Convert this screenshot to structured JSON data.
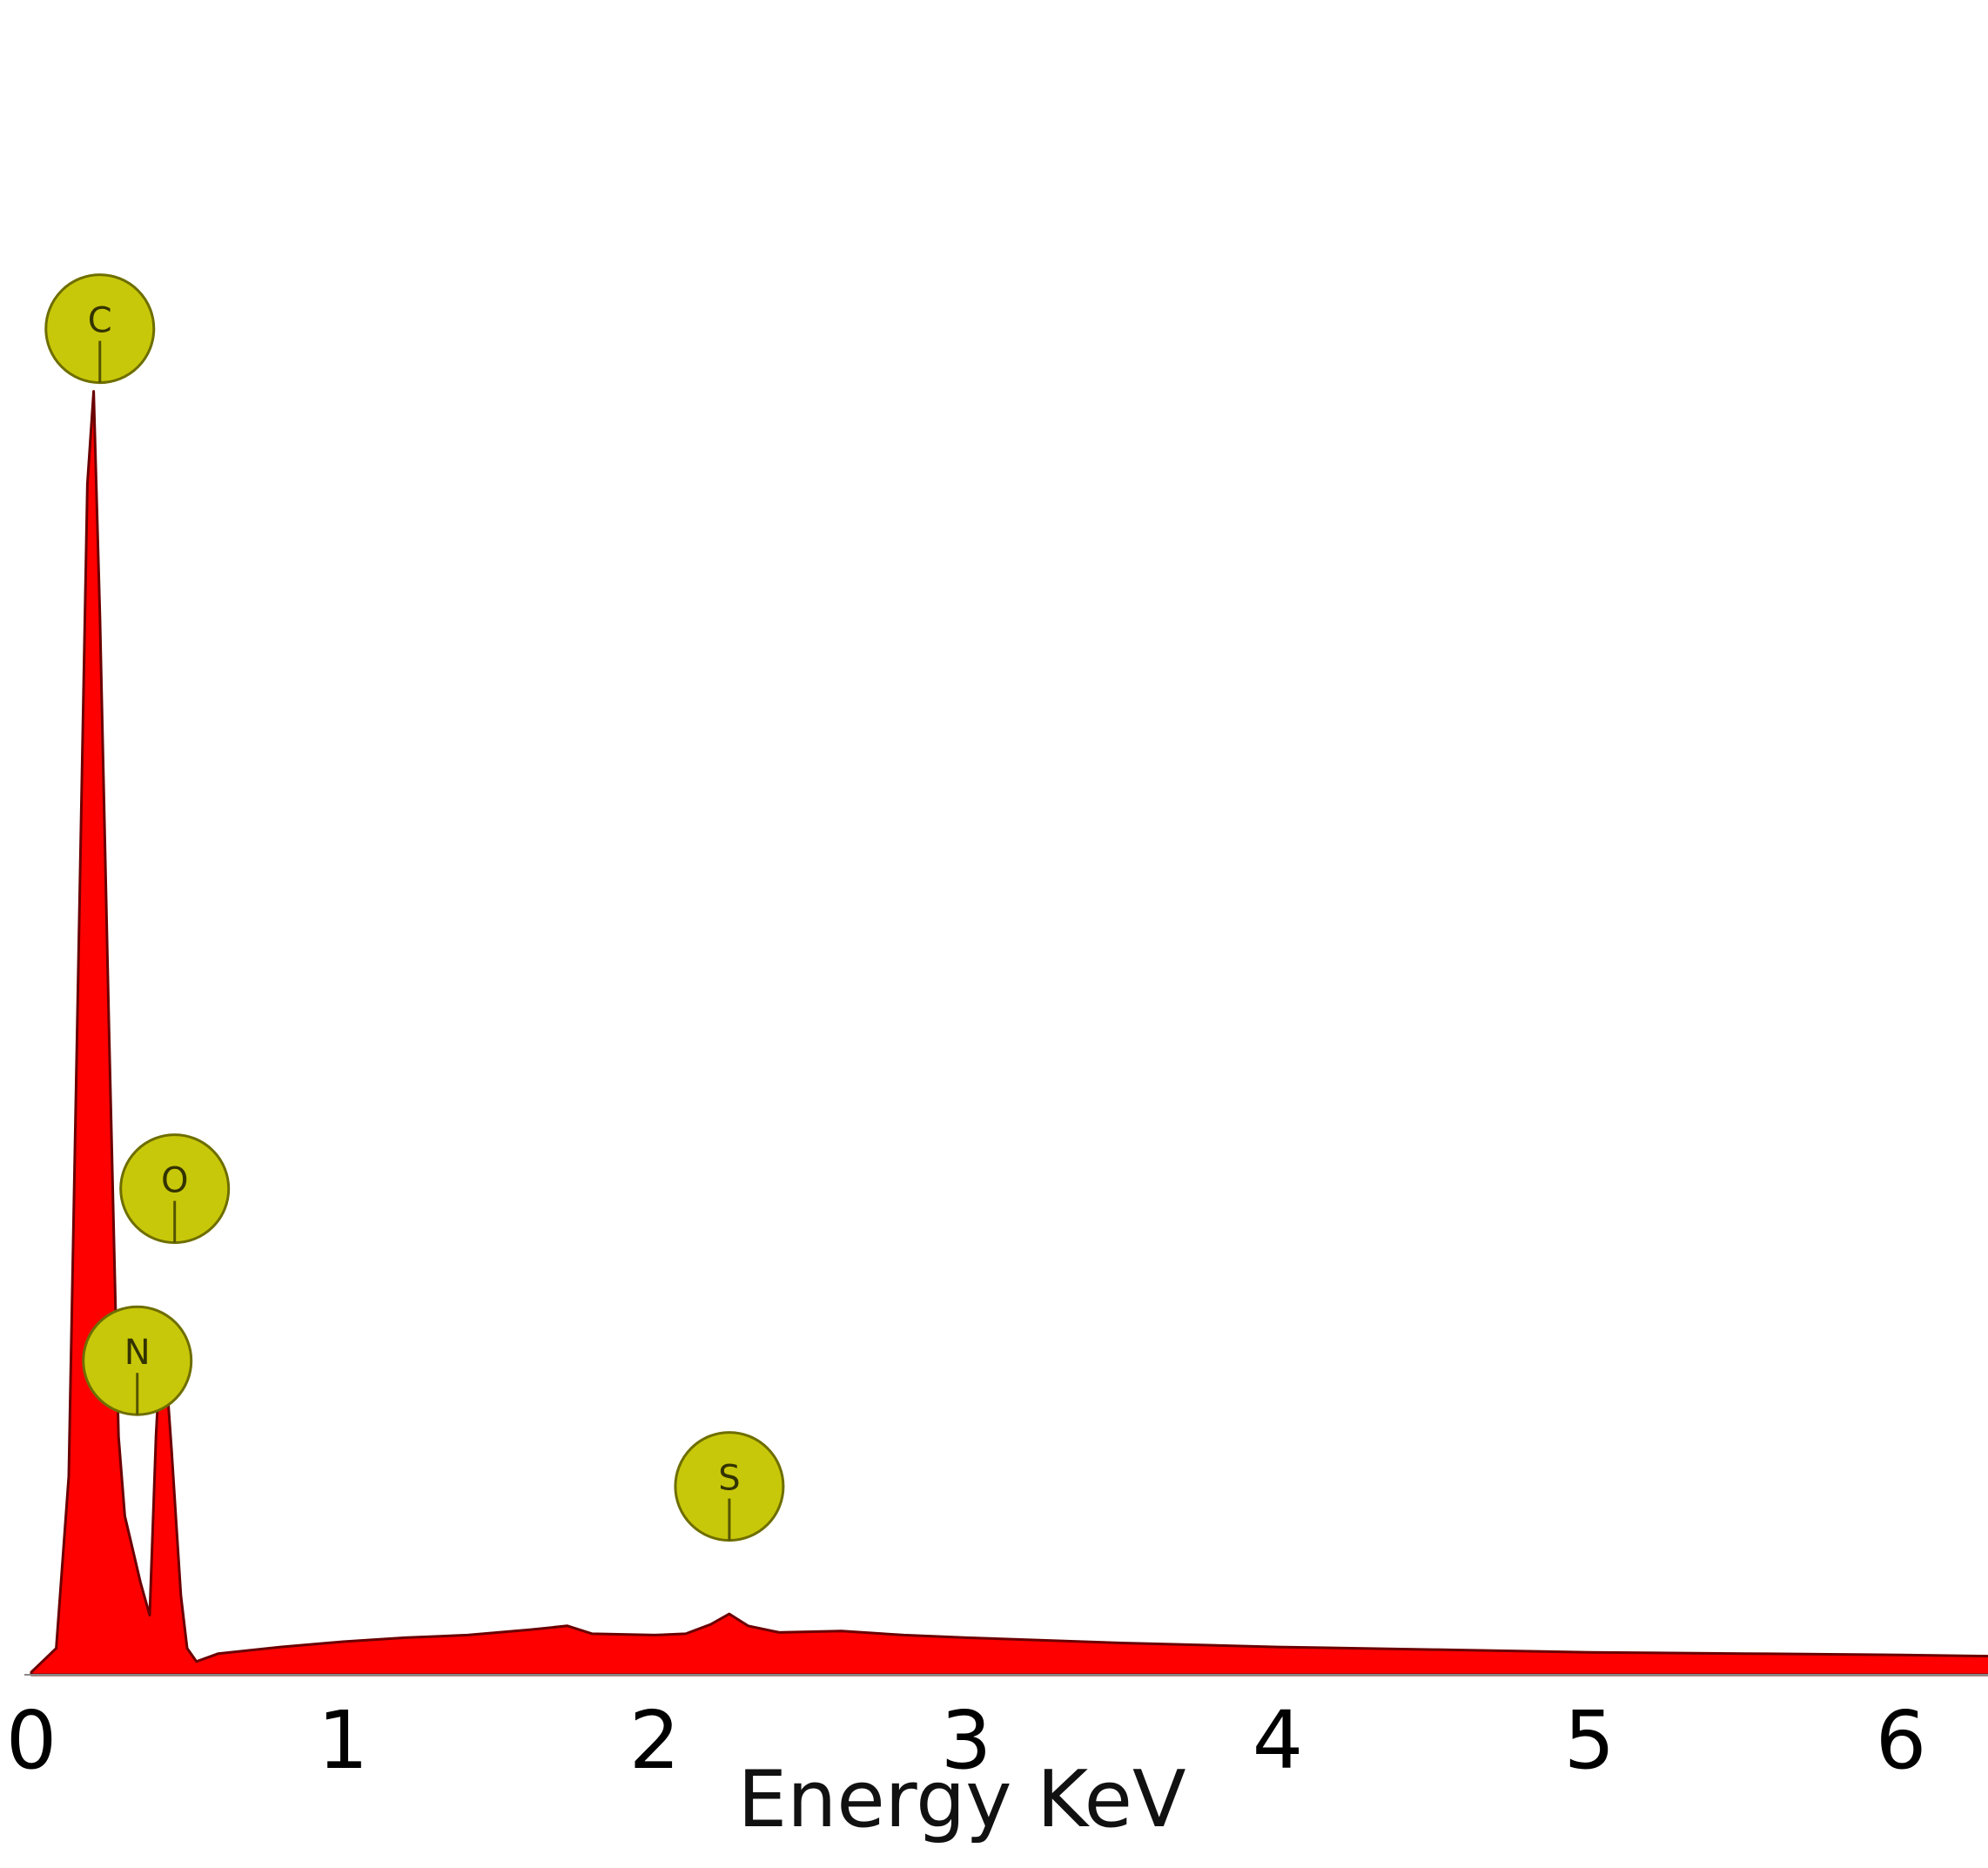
{
  "chart_data": {
    "type": "area",
    "title": "",
    "xlabel": "Energy KeV",
    "ylabel": "",
    "xlim": [
      0,
      6.3
    ],
    "ylim": [
      0,
      100
    ],
    "x_ticks": [
      "0",
      "1",
      "2",
      "3",
      "4",
      "5",
      "6"
    ],
    "grid": false,
    "colors": {
      "fill": "#ff0000",
      "outline": "#6b0000",
      "marker": "#c8c80a",
      "marker_border": "#6e6e00"
    },
    "spectrum": {
      "x": [
        0,
        0.08,
        0.12,
        0.16,
        0.18,
        0.2,
        0.22,
        0.25,
        0.28,
        0.3,
        0.32,
        0.35,
        0.38,
        0.4,
        0.42,
        0.45,
        0.48,
        0.5,
        0.53,
        0.6,
        0.8,
        1.0,
        1.2,
        1.4,
        1.6,
        1.72,
        1.8,
        2.0,
        2.1,
        2.18,
        2.24,
        2.3,
        2.4,
        2.6,
        2.8,
        3.0,
        3.5,
        4.0,
        4.5,
        5.0,
        5.5,
        6.0,
        6.3
      ],
      "y": [
        0.2,
        2,
        15,
        65,
        90,
        97,
        80,
        48,
        18,
        12,
        10,
        7,
        4.5,
        18,
        27,
        17,
        6,
        2,
        1,
        1.6,
        2.1,
        2.5,
        2.8,
        3.0,
        3.4,
        3.7,
        3.1,
        3.0,
        3.1,
        3.8,
        4.6,
        3.7,
        3.2,
        3.3,
        3.0,
        2.8,
        2.4,
        2.1,
        1.9,
        1.7,
        1.6,
        1.5,
        1.4
      ]
    },
    "peaks": [
      {
        "label": "C",
        "energy": 0.22,
        "level": 97
      },
      {
        "label": "N",
        "energy": 0.34,
        "level": 19
      },
      {
        "label": "O",
        "energy": 0.46,
        "level": 32
      },
      {
        "label": "S",
        "energy": 2.24,
        "level": 9.5
      }
    ]
  }
}
